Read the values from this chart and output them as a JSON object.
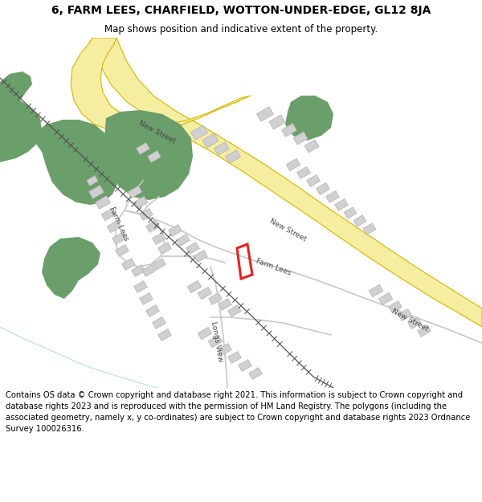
{
  "title": "6, FARM LEES, CHARFIELD, WOTTON-UNDER-EDGE, GL12 8JA",
  "subtitle": "Map shows position and indicative extent of the property.",
  "footer": "Contains OS data © Crown copyright and database right 2021. This information is subject to Crown copyright and database rights 2023 and is reproduced with the permission of HM Land Registry. The polygons (including the associated geometry, namely x, y co-ordinates) are subject to Crown copyright and database rights 2023 Ordnance Survey 100026316.",
  "bg_color": "#ffffff",
  "map_bg": "#f5f5f5",
  "road_fill": "#f5eda0",
  "road_edge": "#d4b800",
  "green_fill": "#6a9e6a",
  "building_fill": "#d0d0d0",
  "building_edge": "#b0b0b0",
  "street_color": "#c8c8c8",
  "property_color": "#e82020",
  "rail_color": "#505050",
  "water_color": "#b8dce8",
  "label_color": "#484848",
  "title_fontsize": 10,
  "subtitle_fontsize": 8.5,
  "footer_fontsize": 7.2
}
